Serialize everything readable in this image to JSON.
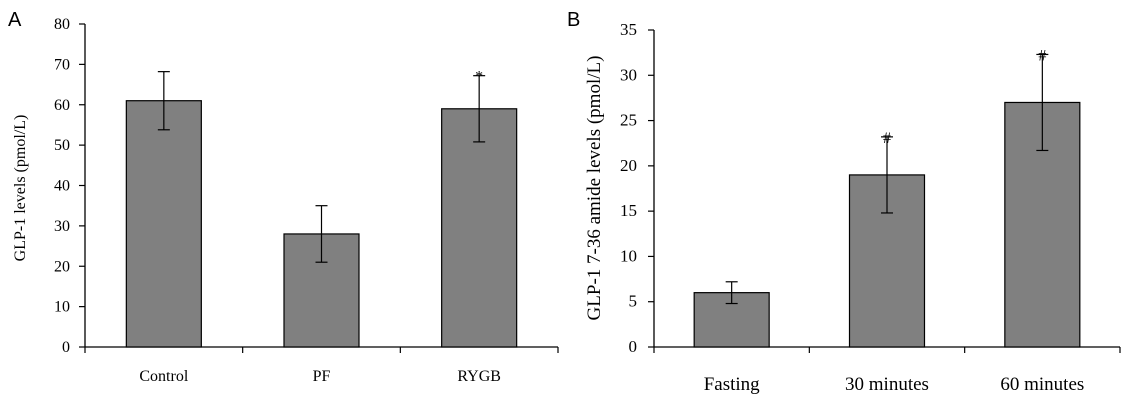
{
  "chart_data": [
    {
      "panel": "A",
      "type": "bar",
      "ylabel": "GLP-1 levels (pmol/L)",
      "ylim": [
        0,
        80
      ],
      "yticks": [
        0,
        10,
        20,
        30,
        40,
        50,
        60,
        70,
        80
      ],
      "categories": [
        "Control",
        "PF",
        "RYGB"
      ],
      "values": [
        61,
        28,
        59
      ],
      "errors": [
        7.2,
        7.0,
        8.2
      ],
      "annotations": [
        "",
        "",
        "*"
      ],
      "bar_color": "#808080"
    },
    {
      "panel": "B",
      "type": "bar",
      "ylabel": "GLP-1 7-36 amide levels (pmol/L)",
      "ylim": [
        0,
        35
      ],
      "yticks": [
        0,
        5,
        10,
        15,
        20,
        25,
        30,
        35
      ],
      "categories": [
        "Fasting",
        "30 minutes",
        "60 minutes"
      ],
      "values": [
        6,
        19,
        27
      ],
      "errors": [
        1.2,
        4.2,
        5.3
      ],
      "annotations": [
        "",
        "#",
        "#"
      ],
      "bar_color": "#808080"
    }
  ]
}
